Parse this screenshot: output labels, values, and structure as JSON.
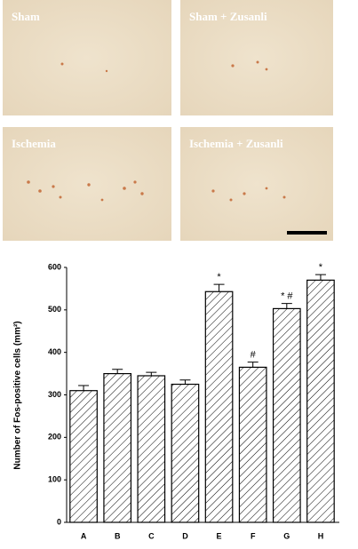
{
  "panels": [
    "Sham",
    "Sham + Zusanli",
    "Ischemia",
    "Ischemia + Zusanli"
  ],
  "chart_data": {
    "type": "bar",
    "y_label": "Number of Fos-positive cells (mm²)",
    "categories": [
      "A",
      "B",
      "C",
      "D",
      "E",
      "F",
      "G",
      "H"
    ],
    "values": [
      310,
      350,
      345,
      325,
      543,
      365,
      503,
      570
    ],
    "errors": [
      12,
      10,
      8,
      10,
      17,
      12,
      12,
      13
    ],
    "annotations": [
      {
        "category": "E",
        "text": "*"
      },
      {
        "category": "F",
        "text": "#"
      },
      {
        "category": "G",
        "text": "* #"
      },
      {
        "category": "H",
        "text": "*"
      }
    ],
    "color": "#000000",
    "ylim": [
      0,
      600
    ],
    "yticks": [
      0,
      100,
      200,
      300,
      400,
      500,
      600
    ]
  }
}
